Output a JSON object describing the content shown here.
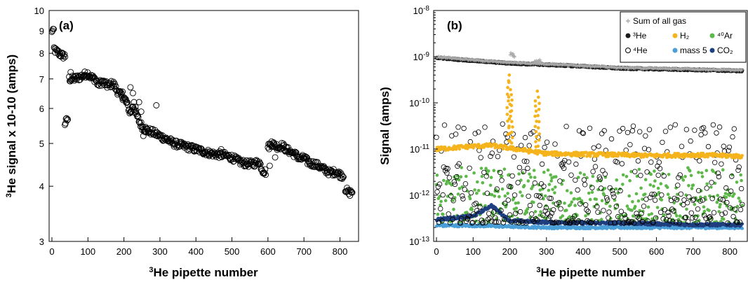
{
  "chart_data": [
    {
      "panel": "(a)",
      "type": "scatter",
      "xlabel": "3He pipette number",
      "ylabel": "3He signal x 10-10 (amps)",
      "xlim": [
        0,
        840
      ],
      "ylim": [
        3,
        10
      ],
      "yscale": "log",
      "xticks": [
        "0",
        "100",
        "200",
        "300",
        "400",
        "500",
        "600",
        "700",
        "800"
      ],
      "yticks": [
        "3",
        "4",
        "5",
        "6",
        "7",
        "8",
        "9",
        "10"
      ],
      "series": [
        {
          "marker": "open-circle",
          "color": "#000000",
          "segments": [
            {
              "x": [
                0,
                2,
                4,
                6
              ],
              "y": [
                8.9,
                9.1,
                9.0,
                8.8
              ]
            },
            {
              "x": [
                6,
                10,
                15,
                20,
                25,
                30,
                34,
                38
              ],
              "y": [
                8.2,
                8.1,
                8.05,
                8.0,
                7.95,
                7.9,
                7.9,
                7.88
              ]
            },
            {
              "x": [
                36,
                39,
                42,
                45
              ],
              "y": [
                5.55,
                5.6,
                5.65,
                5.7
              ]
            },
            {
              "x": [
                48,
                60,
                75,
                90,
                100,
                110,
                120,
                128,
                140,
                155,
                170,
                180,
                190,
                200,
                210,
                218,
                225,
                235,
                245,
                255,
                265,
                280,
                300,
                320,
                340,
                360,
                380,
                400,
                420,
                440,
                460,
                480,
                500,
                520,
                540,
                560,
                575,
                585,
                595
              ],
              "y": [
                7.0,
                7.0,
                7.05,
                7.15,
                7.2,
                7.05,
                7.0,
                6.8,
                6.9,
                6.75,
                6.85,
                6.6,
                6.45,
                6.35,
                6.1,
                5.85,
                6.1,
                5.8,
                5.55,
                5.4,
                5.35,
                5.3,
                5.2,
                5.1,
                5.0,
                4.95,
                4.9,
                4.85,
                4.8,
                4.75,
                4.72,
                4.7,
                4.65,
                4.55,
                4.5,
                4.5,
                4.55,
                4.35,
                4.3
              ]
            },
            {
              "x": [
                600,
                610,
                620,
                630,
                640,
                650,
                660,
                670,
                680,
                690,
                700,
                710,
                720,
                730,
                740,
                750,
                760,
                770,
                780,
                790,
                800,
                810
              ],
              "y": [
                4.9,
                5.0,
                4.95,
                4.9,
                4.95,
                4.85,
                4.8,
                4.75,
                4.7,
                4.6,
                4.65,
                4.55,
                4.5,
                4.5,
                4.45,
                4.4,
                4.35,
                4.3,
                4.3,
                4.32,
                4.25,
                4.22
              ]
            },
            {
              "x": [
                815,
                820,
                825,
                830,
                835
              ],
              "y": [
                3.95,
                3.9,
                3.85,
                3.88,
                3.9
              ]
            }
          ],
          "outliers": [
            {
              "x": [
                52,
                196,
                205,
                218,
                225,
                228,
                232,
                242,
                248,
                254,
                260,
                290,
                470,
                605,
                610,
                620
              ],
              "y": [
                7.25,
                6.55,
                6.3,
                6.7,
                6.5,
                6.2,
                6.05,
                6.2,
                5.9,
                5.2,
                5.45,
                6.1,
                4.85,
                4.45,
                5.05,
                4.65
              ]
            }
          ]
        }
      ]
    },
    {
      "panel": "(b)",
      "type": "scatter",
      "xlabel": "3He pipette number",
      "ylabel": "Signal (amps)",
      "xlim": [
        0,
        840
      ],
      "ylim": [
        1e-13,
        1e-08
      ],
      "yscale": "log",
      "xticks": [
        "0",
        "100",
        "200",
        "300",
        "400",
        "500",
        "600",
        "700",
        "800"
      ],
      "yticks": [
        "10-13",
        "10-12",
        "10-11",
        "10-10",
        "10-9",
        "10-8"
      ],
      "legend_position": "top-right",
      "legend": [
        {
          "label": "Sum of all gas",
          "marker": "plus",
          "color": "#aaaaaa"
        },
        {
          "label": "³He",
          "marker": "filled-circle",
          "color": "#1a1a1a"
        },
        {
          "label": "H₂",
          "marker": "filled-circle",
          "color": "#f5b31c"
        },
        {
          "label": "⁴⁰Ar",
          "marker": "filled-circle",
          "color": "#5cb848"
        },
        {
          "label": "⁴He",
          "marker": "open-circle",
          "color": "#000000"
        },
        {
          "label": "mass 5",
          "marker": "filled-circle",
          "color": "#4a9fd8"
        },
        {
          "label": "CO₂",
          "marker": "filled-circle",
          "color": "#1f3f7f"
        }
      ],
      "series": [
        {
          "id": "sum",
          "x": [
            0,
            100,
            200,
            300,
            400,
            500,
            600,
            700,
            835
          ],
          "y": [
            1e-09,
            8.5e-10,
            7.5e-10,
            7e-10,
            6.4e-10,
            5.8e-10,
            5.6e-10,
            5.4e-10,
            5.1e-10
          ],
          "bumps": {
            "x": [
              205,
              210,
              270,
              280
            ],
            "y": [
              1.15e-09,
              1.05e-09,
              8.5e-10,
              8e-10
            ]
          }
        },
        {
          "id": "he3",
          "x": [
            0,
            100,
            200,
            300,
            400,
            500,
            600,
            700,
            835
          ],
          "y": [
            9.5e-10,
            8.2e-10,
            7.2e-10,
            6.7e-10,
            6.2e-10,
            5.6e-10,
            5.4e-10,
            5.2e-10,
            4.9e-10
          ]
        },
        {
          "id": "h2",
          "baseline": {
            "x": [
              0,
              100,
              150,
              300,
              500,
              600,
              700,
              835
            ],
            "y": [
              1e-11,
              1.15e-11,
              1.2e-11,
              8e-12,
              7.5e-12,
              7.2e-12,
              7.5e-12,
              7e-12
            ]
          },
          "spike_peaks": {
            "x": [
              195,
              200,
              205,
              270,
              278
            ],
            "y": [
              3e-10,
              4e-10,
              1.5e-10,
              1.1e-10,
              1.8e-10
            ]
          }
        },
        {
          "id": "ar40",
          "x_range": [
            0,
            835
          ],
          "y_range": [
            2.5e-13,
            4e-12
          ]
        },
        {
          "id": "he4",
          "x_range": [
            0,
            835
          ],
          "y_range": [
            2.5e-13,
            3.5e-11
          ]
        },
        {
          "id": "mass5",
          "x": [
            0,
            100,
            200,
            300,
            400,
            500,
            600,
            700,
            835
          ],
          "y": [
            2.2e-13,
            2.2e-13,
            2.1e-13,
            2e-13,
            2e-13,
            2e-13,
            2e-13,
            2e-13,
            2e-13
          ]
        },
        {
          "id": "co2",
          "x": [
            0,
            100,
            150,
            200,
            300,
            400,
            500,
            600,
            700,
            835
          ],
          "y": [
            3e-13,
            3.5e-13,
            6e-13,
            2.8e-13,
            2.6e-13,
            2.5e-13,
            2.5e-13,
            2.4e-13,
            2.3e-13,
            2.3e-13
          ]
        }
      ]
    }
  ]
}
